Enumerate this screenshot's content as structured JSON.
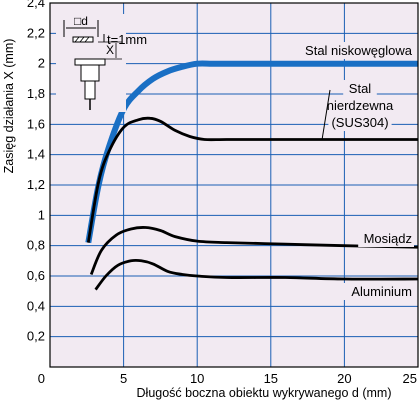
{
  "chart_data": {
    "type": "line",
    "xlabel": "Długość boczna obiektu wykrywanego d (mm)",
    "ylabel": "Zasięg działania X (mm)",
    "xlim": [
      0,
      25
    ],
    "ylim": [
      0,
      2.4
    ],
    "x_ticks": [
      "0",
      "5",
      "10",
      "15",
      "20",
      "25"
    ],
    "y_ticks": [
      "0,2",
      "0,4",
      "0,6",
      "0,8",
      "1",
      "1,2",
      "1,4",
      "1,6",
      "1,8",
      "2",
      "2,2",
      "2,4"
    ],
    "grid": true,
    "legend": "inline labels",
    "inset": {
      "d_label": "□d",
      "x_label": "X",
      "t_label": "t=1mm"
    },
    "colors": {
      "highlight": "#1a6fc4",
      "line": "#000000",
      "grid": "#1a5fb4",
      "plot_bg": "#f2eaf2"
    },
    "series": [
      {
        "name": "Stal niskowęglowa",
        "label_lines": [
          "Stal niskowęglowa"
        ],
        "highlight": true,
        "x": [
          2.6,
          3.3,
          4,
          5,
          6,
          7,
          8,
          9,
          10,
          11,
          12,
          14,
          18,
          25
        ],
        "y": [
          0.82,
          1.2,
          1.45,
          1.7,
          1.82,
          1.9,
          1.95,
          1.98,
          2.0,
          2.0,
          2.0,
          2.0,
          2.0,
          2.0
        ]
      },
      {
        "name": "Stal nierdzewna (SUS304)",
        "label_lines": [
          "Stal",
          "nierdzewna",
          "(SUS304)"
        ],
        "highlight": false,
        "x": [
          2.6,
          3.3,
          4,
          5,
          6,
          6.8,
          7.5,
          8.5,
          9.5,
          10.5,
          12,
          15,
          25
        ],
        "y": [
          0.82,
          1.22,
          1.42,
          1.58,
          1.63,
          1.64,
          1.62,
          1.56,
          1.52,
          1.5,
          1.5,
          1.5,
          1.5
        ]
      },
      {
        "name": "Mosiądz",
        "label_lines": [
          "Mosiądz"
        ],
        "highlight": false,
        "x": [
          2.8,
          3.5,
          4.5,
          5.5,
          6.5,
          7.5,
          8.5,
          10,
          12,
          16,
          20,
          25
        ],
        "y": [
          0.61,
          0.77,
          0.87,
          0.91,
          0.92,
          0.9,
          0.86,
          0.83,
          0.82,
          0.81,
          0.8,
          0.79
        ]
      },
      {
        "name": "Aluminium",
        "label_lines": [
          "Aluminium"
        ],
        "highlight": false,
        "x": [
          3.1,
          3.8,
          4.6,
          5.5,
          6.2,
          7,
          8,
          9,
          10,
          12,
          16,
          20,
          25
        ],
        "y": [
          0.51,
          0.6,
          0.67,
          0.7,
          0.7,
          0.68,
          0.63,
          0.61,
          0.6,
          0.59,
          0.59,
          0.58,
          0.58
        ]
      }
    ]
  }
}
